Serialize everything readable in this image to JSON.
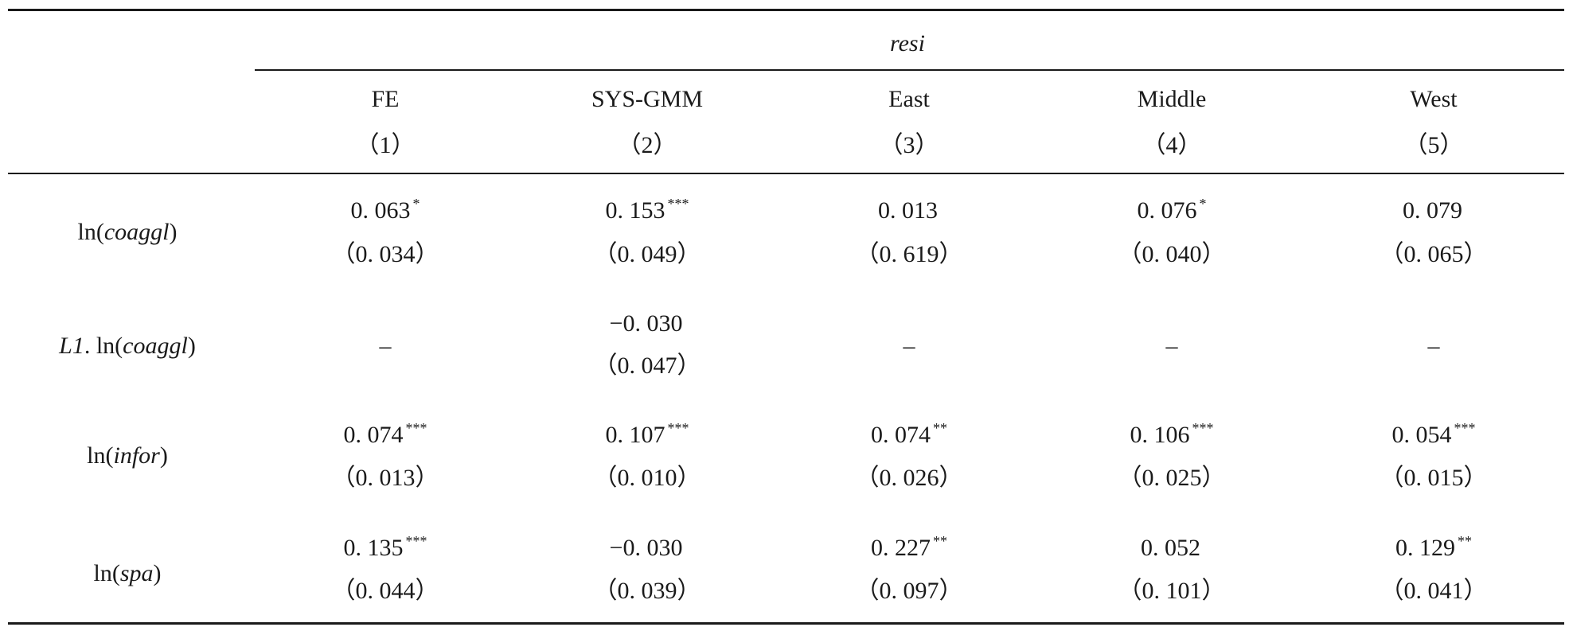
{
  "group_header": "resi",
  "columns": [
    {
      "name": "FE",
      "num": "（1）"
    },
    {
      "name": "SYS-GMM",
      "num": "（2）"
    },
    {
      "name": "East",
      "num": "（3）"
    },
    {
      "name": "Middle",
      "num": "（4）"
    },
    {
      "name": "West",
      "num": "（5）"
    }
  ],
  "rows": [
    {
      "label_pre": "ln(",
      "label_var": "coaggl",
      "label_post": ")",
      "cells": [
        {
          "coef": "0. 063",
          "stars": "*",
          "se": "（0. 034）"
        },
        {
          "coef": "0. 153",
          "stars": "***",
          "se": "（0. 049）"
        },
        {
          "coef": "0. 013",
          "stars": "",
          "se": "（0. 619）"
        },
        {
          "coef": "0. 076",
          "stars": "*",
          "se": "（0. 040）"
        },
        {
          "coef": "0. 079",
          "stars": "",
          "se": "（0. 065）"
        }
      ]
    },
    {
      "label_pre": "",
      "label_var": "L1",
      "label_mid": ". ln(",
      "label_var2": "coaggl",
      "label_post": ")",
      "cells": [
        {
          "dash": "–"
        },
        {
          "coef": "−0. 030",
          "stars": "",
          "se": "（0. 047）"
        },
        {
          "dash": "–"
        },
        {
          "dash": "–"
        },
        {
          "dash": "–"
        }
      ]
    },
    {
      "label_pre": "ln(",
      "label_var": "infor",
      "label_post": ")",
      "cells": [
        {
          "coef": "0. 074",
          "stars": "***",
          "se": "（0. 013）"
        },
        {
          "coef": "0. 107",
          "stars": "***",
          "se": "（0. 010）"
        },
        {
          "coef": "0. 074",
          "stars": "**",
          "se": "（0. 026）"
        },
        {
          "coef": "0. 106",
          "stars": "***",
          "se": "（0. 025）"
        },
        {
          "coef": "0. 054",
          "stars": "***",
          "se": "（0. 015）"
        }
      ]
    },
    {
      "label_pre": "ln(",
      "label_var": "spa",
      "label_post": ")",
      "cells": [
        {
          "coef": "0. 135",
          "stars": "***",
          "se": "（0. 044）"
        },
        {
          "coef": "−0. 030",
          "stars": "",
          "se": "（0. 039）"
        },
        {
          "coef": "0. 227",
          "stars": "**",
          "se": "（0. 097）"
        },
        {
          "coef": "0. 052",
          "stars": "",
          "se": "（0. 101）"
        },
        {
          "coef": "0. 129",
          "stars": "**",
          "se": "（0. 041）"
        }
      ]
    }
  ]
}
